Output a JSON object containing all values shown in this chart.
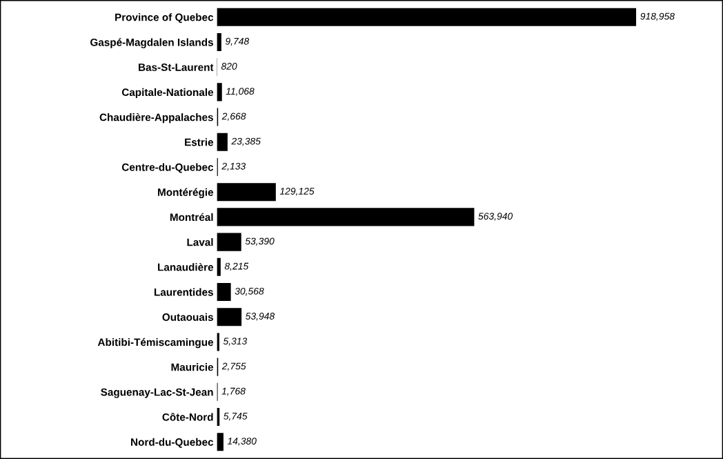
{
  "chart_data": {
    "type": "bar",
    "orientation": "horizontal",
    "grid": false,
    "tick_labels": "y",
    "color": "#000000",
    "value_labels": [
      "918,958",
      "9,748",
      "820",
      "11,068",
      "2,668",
      "23,385",
      "2,133",
      "129,125",
      "563,940",
      "53,390",
      "8,215",
      "30,568",
      "53,948",
      "5,313",
      "2,755",
      "1,768",
      "5,745",
      "14,380"
    ],
    "categories": [
      "Province of Quebec",
      "Gaspé-Magdalen Islands",
      "Bas-St-Laurent",
      "Capitale-Nationale",
      "Chaudière-Appalaches",
      "Estrie",
      "Centre-du-Quebec",
      "Montérégie",
      "Montréal",
      "Laval",
      "Lanaudière",
      "Laurentides",
      "Outaouais",
      "Abitibi-Témiscamingue",
      "Mauricie",
      "Saguenay-Lac-St-Jean",
      "Côte-Nord",
      "Nord-du-Quebec"
    ],
    "values": [
      918958,
      9748,
      820,
      11068,
      2668,
      23385,
      2133,
      129125,
      563940,
      53390,
      8215,
      30568,
      53948,
      5313,
      2755,
      1768,
      5745,
      14380
    ]
  }
}
